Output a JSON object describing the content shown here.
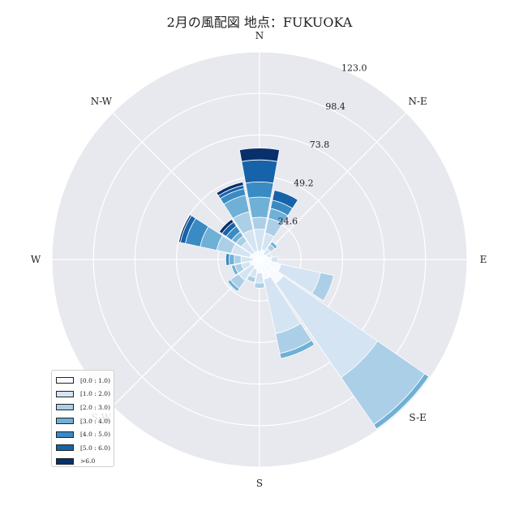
{
  "chart_data": {
    "type": "windrose",
    "title": "2月の風配図 地点：FUKUOKA",
    "directions": [
      "N",
      "NNE",
      "NE",
      "ENE",
      "E",
      "ESE",
      "SE",
      "SSE",
      "S",
      "SSW",
      "SW",
      "WSW",
      "W",
      "WNW",
      "NW",
      "NNW"
    ],
    "direction_labels": [
      "N",
      "N-E",
      "E",
      "S-E",
      "S",
      "S-W",
      "W",
      "N-W"
    ],
    "radial_ticks": [
      "24.6",
      "49.2",
      "73.8",
      "98.4",
      "123.0"
    ],
    "radial_max": 123.0,
    "legend_placement": "lower-left",
    "bins": [
      {
        "label": "[0.0 : 1.0)",
        "color": "#f7fbff"
      },
      {
        "label": "[1.0 : 2.0)",
        "color": "#d4e4f3"
      },
      {
        "label": "[2.0 : 3.0)",
        "color": "#abcfe6"
      },
      {
        "label": "[3.0 : 4.0)",
        "color": "#6fb0d7"
      },
      {
        "label": "[4.0 : 5.0)",
        "color": "#3a8bc3"
      },
      {
        "label": "[5.0 : 6.0)",
        "color": "#1763aa"
      },
      {
        ">6.0": null,
        "label": ">6.0",
        "color": "#08306b"
      }
    ],
    "series": [
      {
        "direction": "N",
        "values": [
          5,
          13,
          7,
          12,
          9,
          13,
          7
        ]
      },
      {
        "direction": "NNE",
        "values": [
          6,
          10,
          9,
          6,
          5,
          6,
          0
        ]
      },
      {
        "direction": "NE",
        "values": [
          4,
          4,
          3,
          2,
          0,
          0,
          0
        ]
      },
      {
        "direction": "ENE",
        "values": [
          5,
          2,
          0,
          0,
          0,
          0,
          0
        ]
      },
      {
        "direction": "E",
        "values": [
          7,
          4,
          0,
          0,
          0,
          0,
          0
        ]
      },
      {
        "direction": "ESE",
        "values": [
          13,
          24,
          8,
          0,
          0,
          0,
          0
        ]
      },
      {
        "direction": "SE",
        "values": [
          17,
          68,
          34,
          3,
          0,
          0,
          0
        ]
      },
      {
        "direction": "SSE",
        "values": [
          12,
          33,
          12,
          3,
          0,
          0,
          0
        ]
      },
      {
        "direction": "S",
        "values": [
          8,
          6,
          3,
          0,
          0,
          0,
          0
        ]
      },
      {
        "direction": "SSW",
        "values": [
          6,
          5,
          3,
          0,
          0,
          0,
          0
        ]
      },
      {
        "direction": "SW",
        "values": [
          5,
          10,
          6,
          2,
          0,
          0,
          0
        ]
      },
      {
        "direction": "WSW",
        "values": [
          6,
          5,
          4,
          2,
          0,
          0,
          0
        ]
      },
      {
        "direction": "W",
        "values": [
          4,
          7,
          4,
          3,
          2,
          0,
          0
        ]
      },
      {
        "direction": "WNW",
        "values": [
          6,
          11,
          9,
          10,
          9,
          3,
          1
        ]
      },
      {
        "direction": "NW",
        "values": [
          5,
          8,
          4,
          3,
          4,
          3,
          2
        ]
      },
      {
        "direction": "NNW",
        "values": [
          5,
          13,
          11,
          10,
          4,
          2,
          2
        ]
      }
    ]
  }
}
